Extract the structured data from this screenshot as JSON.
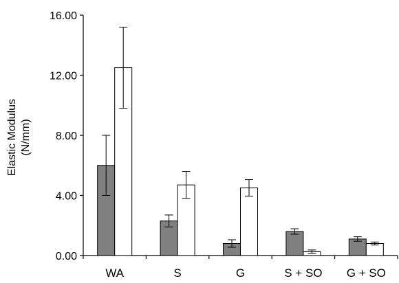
{
  "chart_data": {
    "type": "bar",
    "categories": [
      "WA",
      "S",
      "G",
      "S + SO",
      "G + SO"
    ],
    "series": [
      {
        "color": "#808080",
        "values": [
          6.0,
          2.3,
          0.8,
          1.6,
          1.1
        ],
        "errors": [
          2.0,
          0.4,
          0.25,
          0.18,
          0.15
        ]
      },
      {
        "color": "#ffffff",
        "values": [
          12.5,
          4.7,
          4.5,
          0.25,
          0.8
        ],
        "errors": [
          2.7,
          0.9,
          0.55,
          0.12,
          0.1
        ]
      }
    ],
    "ylabel": [
      "Elastic Modulus",
      "(N/mm)"
    ],
    "ylim": [
      0,
      16
    ],
    "yticks": [
      "0.00",
      "4.00",
      "8.00",
      "12.00",
      "16.00"
    ],
    "ytick_values": [
      0,
      4,
      8,
      12,
      16
    ],
    "grid": false,
    "legend": "none"
  }
}
